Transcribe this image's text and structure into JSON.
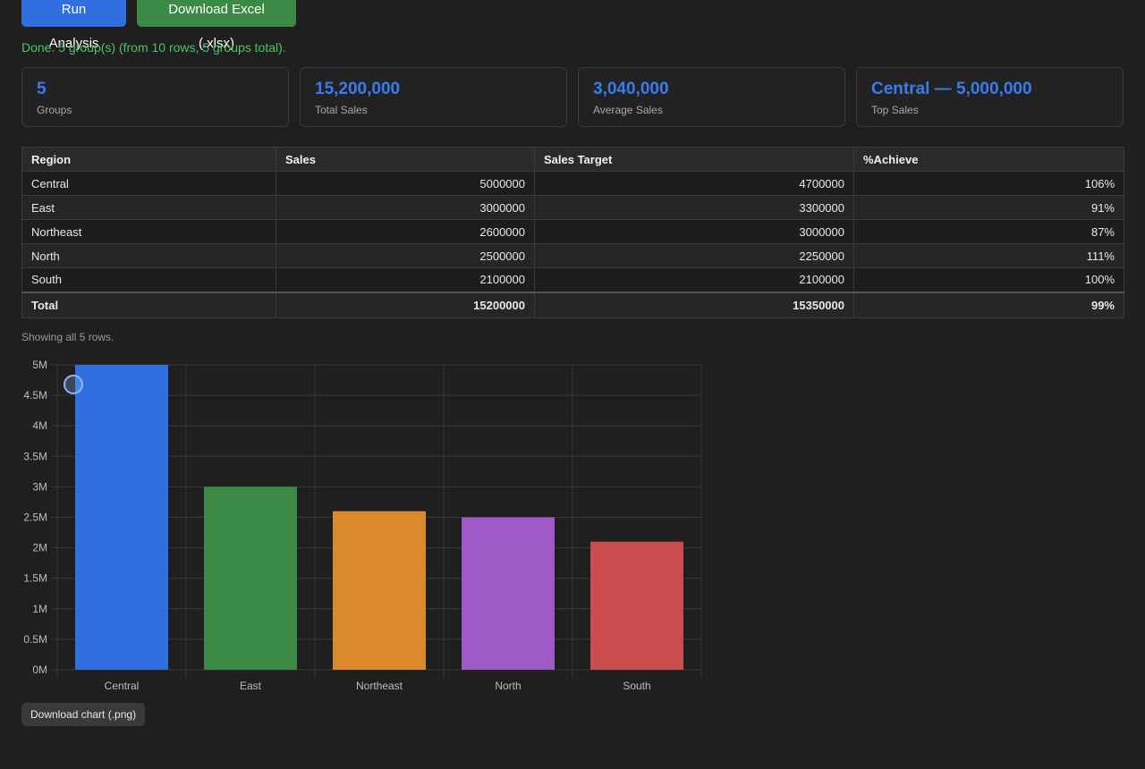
{
  "toolbar": {
    "run_label": "Run Analysis",
    "download_excel_label": "Download Excel (.xlsx)"
  },
  "status_text": "Done. 5 group(s) (from 10 rows, 5 groups total).",
  "cards": [
    {
      "value": "5",
      "label": "Groups"
    },
    {
      "value": "15,200,000",
      "label": "Total Sales"
    },
    {
      "value": "3,040,000",
      "label": "Average Sales"
    },
    {
      "value": "Central — 5,000,000",
      "label": "Top Sales"
    }
  ],
  "table": {
    "headers": [
      "Region",
      "Sales",
      "Sales Target",
      "%Achieve"
    ],
    "rows": [
      [
        "Central",
        "5000000",
        "4700000",
        "106%"
      ],
      [
        "East",
        "3000000",
        "3300000",
        "91%"
      ],
      [
        "Northeast",
        "2600000",
        "3000000",
        "87%"
      ],
      [
        "North",
        "2500000",
        "2250000",
        "111%"
      ],
      [
        "South",
        "2100000",
        "2100000",
        "100%"
      ]
    ],
    "total": [
      "Total",
      "15200000",
      "15350000",
      "99%"
    ]
  },
  "rows_note": "Showing all 5 rows.",
  "chart_data": {
    "type": "bar",
    "categories": [
      "Central",
      "East",
      "Northeast",
      "North",
      "South"
    ],
    "values": [
      5000000,
      3000000,
      2600000,
      2500000,
      2100000
    ],
    "colors": [
      "#2f6fe0",
      "#3a8a45",
      "#da8a2d",
      "#a05ac8",
      "#c94d4d"
    ],
    "ylim": [
      0,
      5000000
    ],
    "yticks": [
      "0M",
      "0.5M",
      "1M",
      "1.5M",
      "2M",
      "2.5M",
      "3M",
      "3.5M",
      "4M",
      "4.5M",
      "5M"
    ],
    "grid": true,
    "title": "",
    "xlabel": "",
    "ylabel": ""
  },
  "download_chart_label": "Download chart (.png)"
}
